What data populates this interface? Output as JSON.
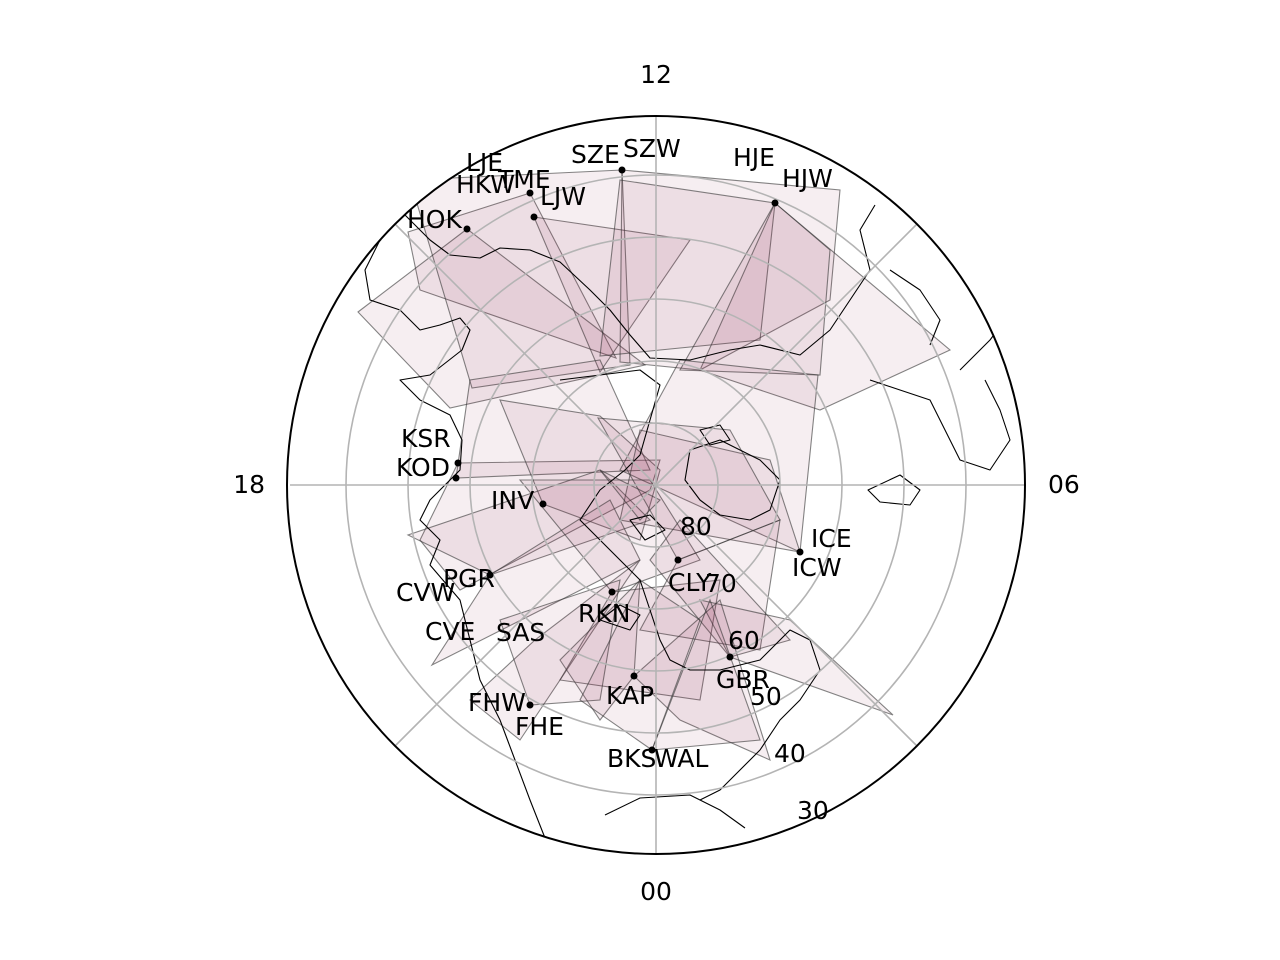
{
  "map": {
    "mlt_labels": {
      "top": "12",
      "right": "06",
      "bottom": "00",
      "left": "18"
    },
    "latitude_labels": [
      "80",
      "70",
      "60",
      "50",
      "40",
      "30"
    ],
    "radar_sites": [
      {
        "code": "LJE"
      },
      {
        "code": "HKW"
      },
      {
        "code": "TME"
      },
      {
        "code": "LJW"
      },
      {
        "code": "HOK"
      },
      {
        "code": "SZE"
      },
      {
        "code": "SZW"
      },
      {
        "code": "HJE"
      },
      {
        "code": "HJW"
      },
      {
        "code": "KSR"
      },
      {
        "code": "KOD"
      },
      {
        "code": "INV"
      },
      {
        "code": "ICE"
      },
      {
        "code": "ICW"
      },
      {
        "code": "PGR"
      },
      {
        "code": "CVW"
      },
      {
        "code": "CVE"
      },
      {
        "code": "SAS"
      },
      {
        "code": "RKN"
      },
      {
        "code": "CLY"
      },
      {
        "code": "GBR"
      },
      {
        "code": "KAP"
      },
      {
        "code": "FHW"
      },
      {
        "code": "FHE"
      },
      {
        "code": "BKS"
      },
      {
        "code": "WAL"
      }
    ],
    "colors": {
      "fov_fill": "#8b2b50",
      "grid": "#b4b4b4",
      "coast": "#000000"
    }
  }
}
